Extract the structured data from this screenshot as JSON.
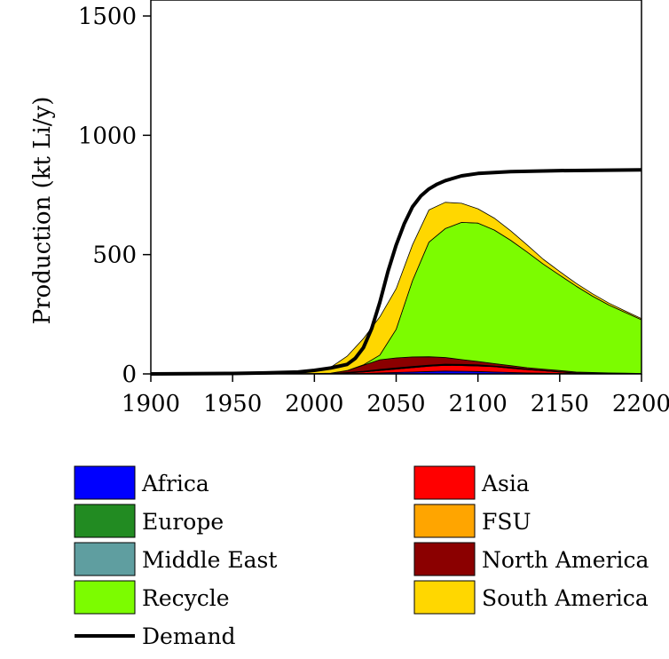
{
  "chart_data": {
    "type": "area",
    "ylabel": "Production (kt Li/y)",
    "xlim": [
      1900,
      2200
    ],
    "ylim": [
      0,
      1500
    ],
    "x_ticks": [
      1900,
      1950,
      2000,
      2050,
      2100,
      2150,
      2200
    ],
    "y_ticks": [
      0,
      500,
      1000,
      1500
    ],
    "x_tick_labels": [
      "1900",
      "1950",
      "2000",
      "2050",
      "2100",
      "2150",
      "2200"
    ],
    "y_tick_labels": [
      "0",
      "500",
      "1000",
      "1500"
    ],
    "grid": false,
    "legend_position": "bottom",
    "x": [
      1900,
      1950,
      2000,
      2010,
      2020,
      2030,
      2040,
      2050,
      2060,
      2070,
      2080,
      2090,
      2100,
      2110,
      2120,
      2130,
      2140,
      2150,
      2160,
      2170,
      2180,
      2190,
      2200
    ],
    "series": [
      {
        "name": "Africa",
        "color": "#0000ff",
        "values": [
          0,
          0,
          0,
          0,
          1,
          2,
          4,
          6,
          8,
          10,
          12,
          11,
          10,
          8,
          6,
          4,
          3,
          2,
          1,
          1,
          0,
          0,
          0
        ]
      },
      {
        "name": "Asia",
        "color": "#ff0000",
        "values": [
          0,
          0,
          1,
          1,
          3,
          6,
          10,
          14,
          18,
          22,
          24,
          24,
          23,
          22,
          18,
          14,
          10,
          6,
          3,
          2,
          1,
          1,
          0
        ]
      },
      {
        "name": "Europe",
        "color": "#228b22",
        "values": [
          0,
          0,
          0,
          0,
          1,
          1,
          2,
          2,
          2,
          2,
          2,
          2,
          2,
          1,
          1,
          1,
          1,
          0,
          0,
          0,
          0,
          0,
          0
        ]
      },
      {
        "name": "FSU",
        "color": "#ffa500",
        "values": [
          0,
          0,
          0,
          0,
          1,
          1,
          2,
          2,
          2,
          2,
          2,
          2,
          2,
          1,
          1,
          1,
          1,
          1,
          0,
          0,
          0,
          0,
          0
        ]
      },
      {
        "name": "Middle East",
        "color": "#5f9ea0",
        "values": [
          0,
          0,
          0,
          0,
          0,
          1,
          1,
          1,
          1,
          1,
          1,
          1,
          1,
          1,
          1,
          0,
          0,
          0,
          0,
          0,
          0,
          0,
          0
        ]
      },
      {
        "name": "North America",
        "color": "#8b0000",
        "values": [
          0,
          0,
          1,
          2,
          8,
          25,
          40,
          42,
          40,
          35,
          28,
          20,
          14,
          10,
          8,
          6,
          5,
          5,
          4,
          3,
          3,
          2,
          2
        ]
      },
      {
        "name": "Recycle",
        "color": "#7cfc00",
        "values": [
          0,
          0,
          0,
          0,
          0,
          2,
          20,
          120,
          320,
          480,
          540,
          575,
          580,
          560,
          525,
          485,
          440,
          400,
          360,
          320,
          285,
          255,
          225
        ]
      },
      {
        "name": "South America",
        "color": "#ffd700",
        "values": [
          0,
          0,
          12,
          25,
          60,
          110,
          160,
          170,
          150,
          135,
          110,
          80,
          60,
          50,
          40,
          30,
          20,
          15,
          12,
          10,
          8,
          6,
          5
        ]
      }
    ],
    "demand": {
      "name": "Demand",
      "color": "#000000",
      "x": [
        1900,
        1950,
        1970,
        1990,
        2000,
        2010,
        2020,
        2025,
        2030,
        2035,
        2040,
        2045,
        2050,
        2055,
        2060,
        2065,
        2070,
        2075,
        2080,
        2090,
        2100,
        2120,
        2150,
        2200
      ],
      "values": [
        0,
        2,
        4,
        8,
        15,
        25,
        40,
        65,
        110,
        190,
        300,
        430,
        540,
        630,
        700,
        745,
        775,
        795,
        810,
        830,
        840,
        848,
        852,
        855
      ]
    },
    "legend_entries": [
      {
        "name": "Africa",
        "color": "#0000ff",
        "kind": "box"
      },
      {
        "name": "Asia",
        "color": "#ff0000",
        "kind": "box"
      },
      {
        "name": "Europe",
        "color": "#228b22",
        "kind": "box"
      },
      {
        "name": "FSU",
        "color": "#ffa500",
        "kind": "box"
      },
      {
        "name": "Middle East",
        "color": "#5f9ea0",
        "kind": "box"
      },
      {
        "name": "North America",
        "color": "#8b0000",
        "kind": "box"
      },
      {
        "name": "Recycle",
        "color": "#7cfc00",
        "kind": "box"
      },
      {
        "name": "South America",
        "color": "#ffd700",
        "kind": "box"
      },
      {
        "name": "Demand",
        "color": "#000000",
        "kind": "line"
      }
    ]
  }
}
